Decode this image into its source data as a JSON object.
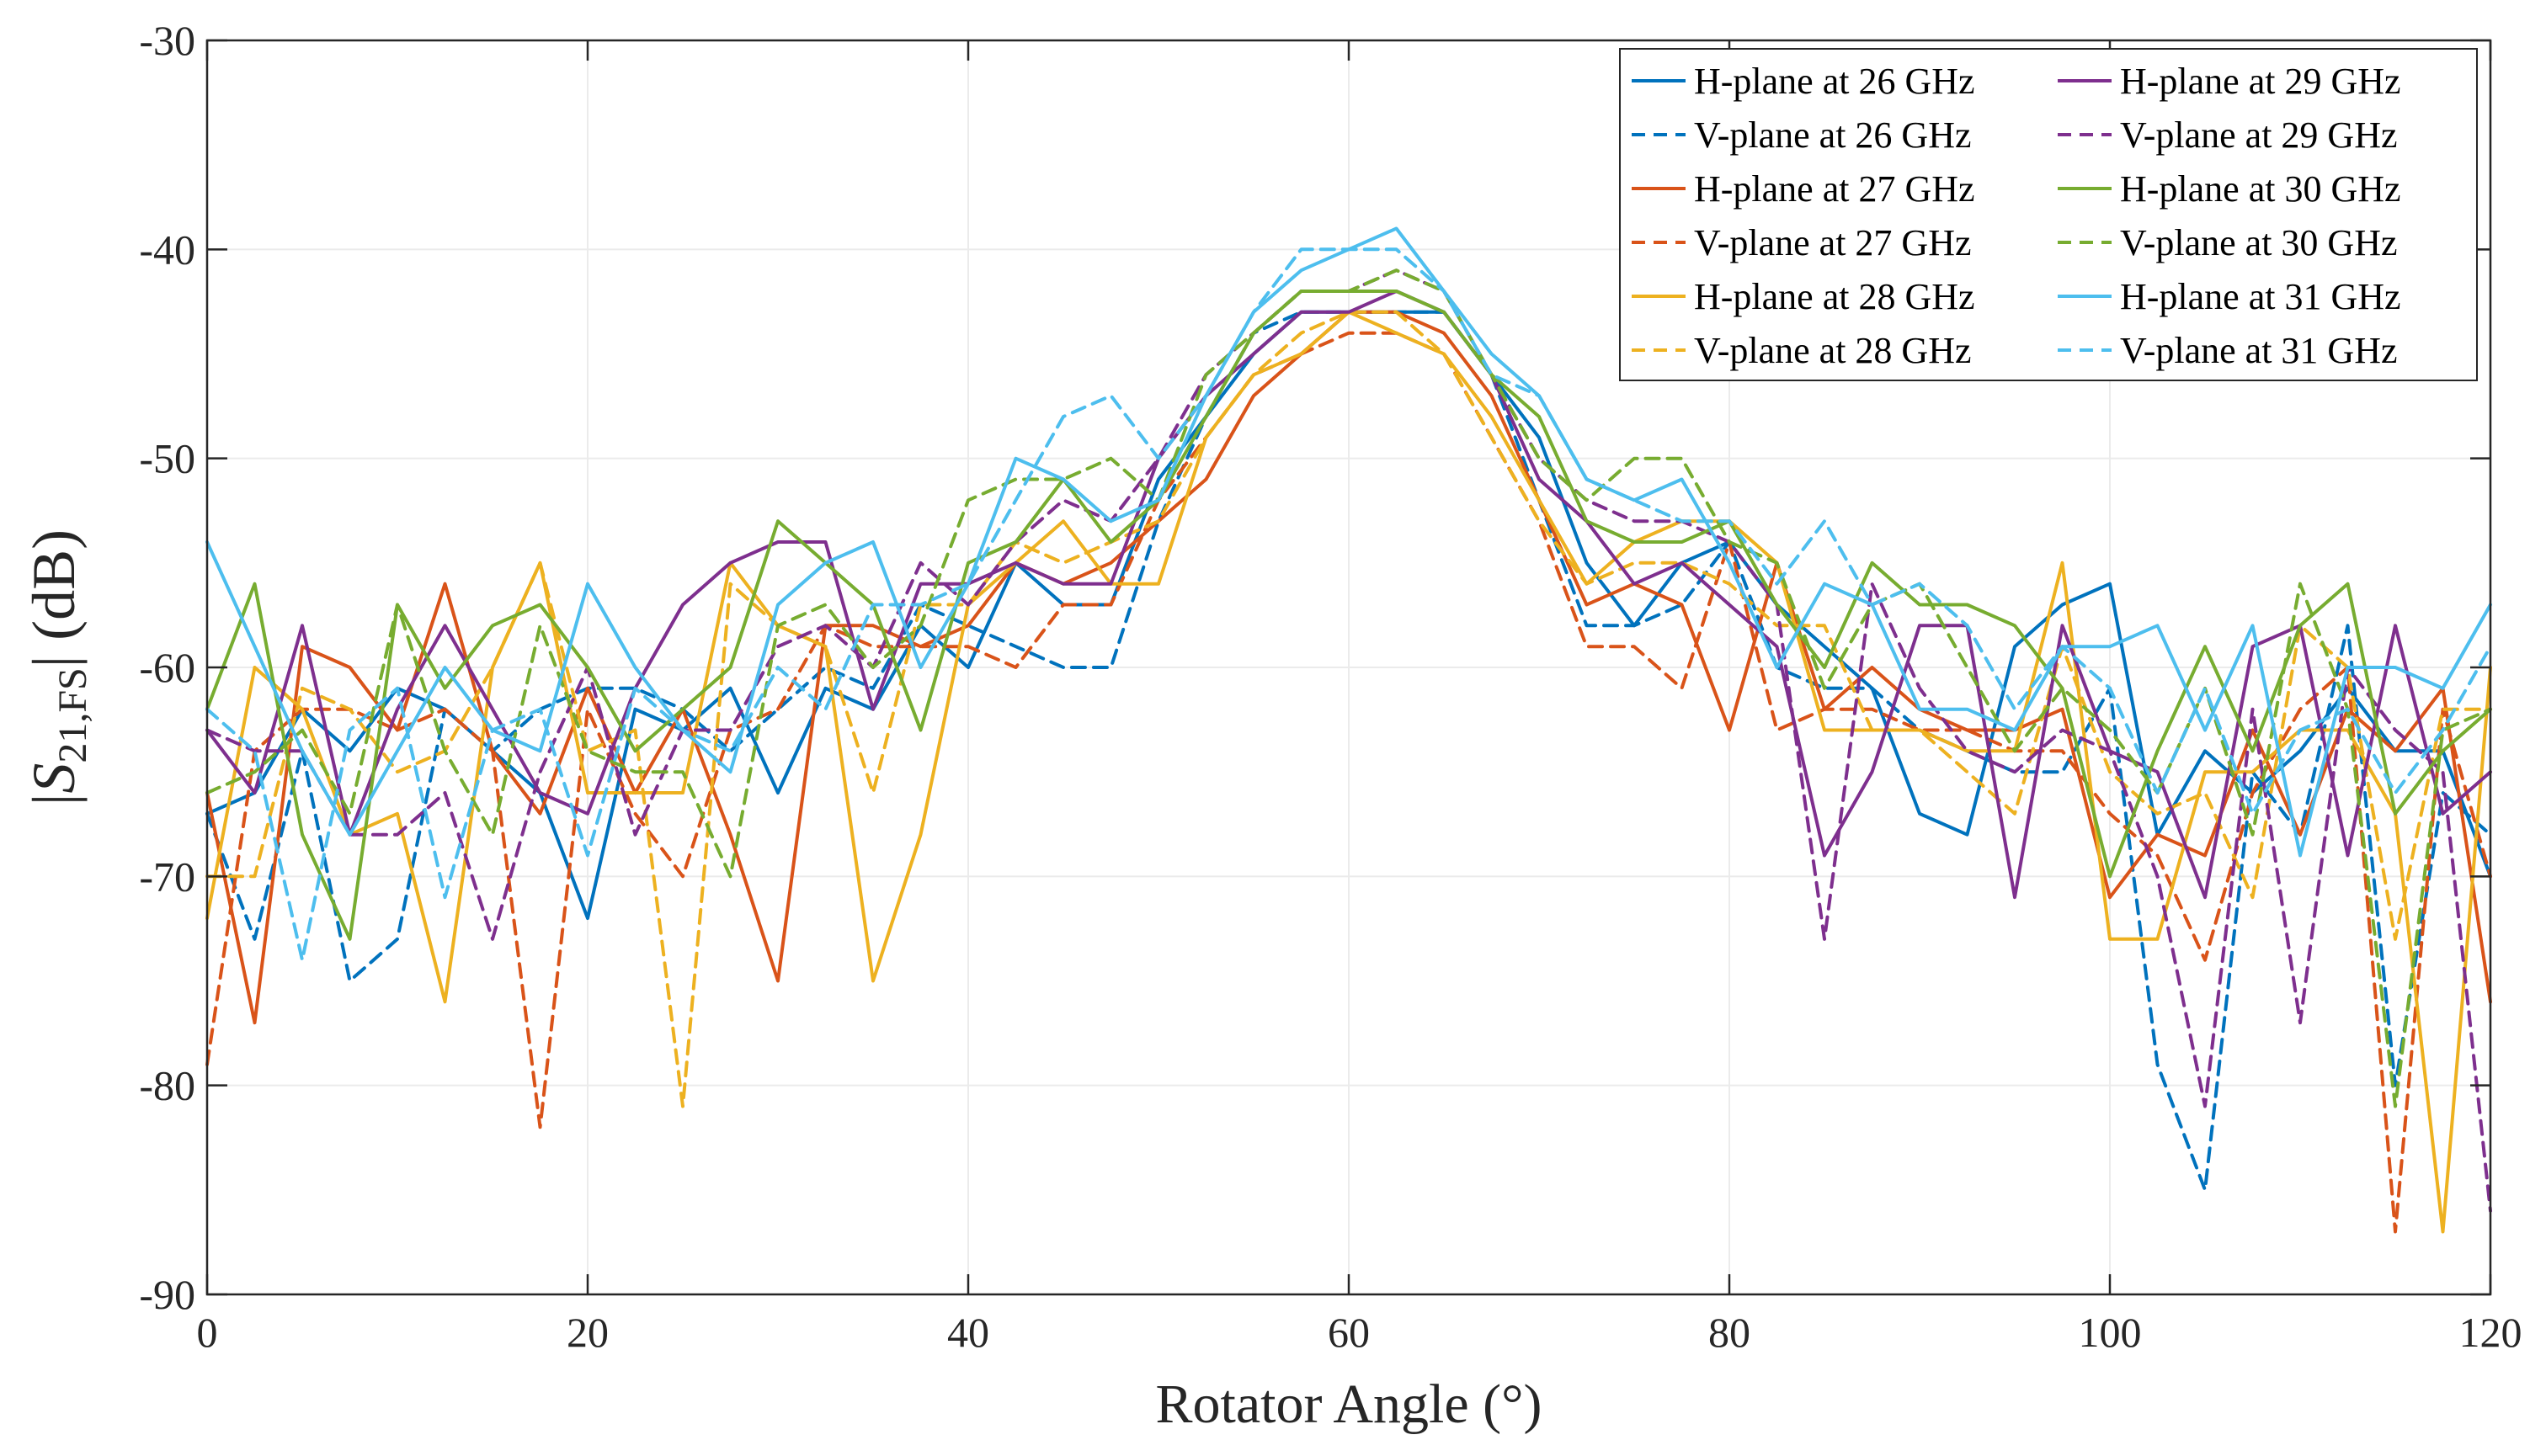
{
  "chart_data": {
    "type": "line",
    "title": "",
    "xlabel": "Rotator Angle (°)",
    "ylabel": "|S21,FS| (dB)",
    "ylabel_parts": {
      "pre": "|",
      "main": "S",
      "sub": "21,FS",
      "post": "| (dB)"
    },
    "xlim": [
      0,
      120
    ],
    "ylim": [
      -90,
      -30
    ],
    "xticks": [
      0,
      20,
      40,
      60,
      80,
      100,
      120
    ],
    "yticks": [
      -30,
      -40,
      -50,
      -60,
      -70,
      -80,
      -90
    ],
    "grid": true,
    "legend_position": "top-right",
    "x": [
      0,
      2.5,
      5,
      7.5,
      10,
      12.5,
      15,
      17.5,
      20,
      22.5,
      25,
      27.5,
      30,
      32.5,
      35,
      37.5,
      40,
      42.5,
      45,
      47.5,
      50,
      52.5,
      55,
      57.5,
      60,
      62.5,
      65,
      67.5,
      70,
      72.5,
      75,
      77.5,
      80,
      82.5,
      85,
      87.5,
      90,
      92.5,
      95,
      97.5,
      100,
      102.5,
      105,
      107.5,
      110,
      112.5,
      115,
      117.5,
      120
    ],
    "series": [
      {
        "name": "H-plane at 26 GHz",
        "color": "#0072BD",
        "dash": "solid",
        "values": [
          -67,
          -66,
          -62,
          -64,
          -61,
          -62,
          -64,
          -66,
          -72,
          -62,
          -63,
          -61,
          -66,
          -61,
          -62,
          -58,
          -60,
          -55,
          -57,
          -57,
          -51,
          -48,
          -45,
          -43,
          -43,
          -43,
          -43,
          -46,
          -49,
          -55,
          -58,
          -55,
          -54,
          -57,
          -59,
          -61,
          -67,
          -68,
          -59,
          -57,
          -56,
          -68,
          -64,
          -66,
          -64,
          -61,
          -64,
          -64,
          -70
        ]
      },
      {
        "name": "V-plane at 26 GHz",
        "color": "#0072BD",
        "dash": "dashed",
        "values": [
          -67,
          -73,
          -64,
          -75,
          -73,
          -62,
          -64,
          -62,
          -61,
          -61,
          -62,
          -64,
          -62,
          -60,
          -61,
          -57,
          -58,
          -59,
          -60,
          -60,
          -53,
          -48,
          -44,
          -43,
          -43,
          -43,
          -43,
          -46,
          -52,
          -58,
          -58,
          -57,
          -54,
          -60,
          -61,
          -61,
          -63,
          -64,
          -65,
          -65,
          -61,
          -79,
          -85,
          -65,
          -68,
          -58,
          -80,
          -66,
          -68
        ]
      },
      {
        "name": "H-plane at 27 GHz",
        "color": "#D95319",
        "dash": "solid",
        "values": [
          -66,
          -77,
          -59,
          -60,
          -63,
          -56,
          -64,
          -67,
          -61,
          -66,
          -62,
          -68,
          -75,
          -58,
          -58,
          -59,
          -58,
          -55,
          -56,
          -55,
          -53,
          -51,
          -47,
          -45,
          -43,
          -43,
          -44,
          -47,
          -52,
          -57,
          -56,
          -57,
          -63,
          -55,
          -62,
          -60,
          -62,
          -63,
          -63,
          -62,
          -71,
          -68,
          -69,
          -63,
          -68,
          -62,
          -64,
          -61,
          -76
        ]
      },
      {
        "name": "V-plane at 27 GHz",
        "color": "#D95319",
        "dash": "dashed",
        "values": [
          -79,
          -64,
          -62,
          -62,
          -63,
          -62,
          -64,
          -82,
          -62,
          -67,
          -70,
          -63,
          -62,
          -58,
          -59,
          -59,
          -59,
          -60,
          -57,
          -57,
          -52,
          -49,
          -46,
          -45,
          -44,
          -44,
          -45,
          -49,
          -53,
          -59,
          -59,
          -61,
          -54,
          -63,
          -62,
          -62,
          -63,
          -63,
          -64,
          -64,
          -67,
          -69,
          -74,
          -66,
          -62,
          -60,
          -87,
          -62,
          -70
        ]
      },
      {
        "name": "H-plane at 28 GHz",
        "color": "#EDB120",
        "dash": "solid",
        "values": [
          -72,
          -60,
          -62,
          -68,
          -67,
          -76,
          -60,
          -55,
          -66,
          -66,
          -66,
          -55,
          -58,
          -59,
          -75,
          -68,
          -57,
          -55,
          -53,
          -56,
          -56,
          -49,
          -46,
          -45,
          -43,
          -44,
          -45,
          -48,
          -52,
          -56,
          -54,
          -53,
          -53,
          -55,
          -63,
          -63,
          -63,
          -64,
          -64,
          -55,
          -73,
          -73,
          -65,
          -65,
          -63,
          -63,
          -67,
          -87,
          -60
        ]
      },
      {
        "name": "V-plane at 28 GHz",
        "color": "#EDB120",
        "dash": "dashed",
        "values": [
          -70,
          -70,
          -61,
          -62,
          -65,
          -64,
          -60,
          -55,
          -64,
          -63,
          -81,
          -56,
          -58,
          -59,
          -66,
          -57,
          -57,
          -54,
          -55,
          -54,
          -53,
          -49,
          -46,
          -44,
          -43,
          -43,
          -45,
          -49,
          -53,
          -56,
          -55,
          -55,
          -56,
          -58,
          -58,
          -63,
          -63,
          -65,
          -67,
          -59,
          -65,
          -67,
          -66,
          -71,
          -58,
          -60,
          -73,
          -62,
          -62
        ]
      },
      {
        "name": "H-plane at 29 GHz",
        "color": "#7E2F8E",
        "dash": "solid",
        "values": [
          -63,
          -66,
          -58,
          -68,
          -62,
          -58,
          -62,
          -66,
          -67,
          -61,
          -57,
          -55,
          -54,
          -54,
          -62,
          -56,
          -56,
          -55,
          -56,
          -56,
          -50,
          -47,
          -45,
          -43,
          -43,
          -42,
          -43,
          -46,
          -51,
          -53,
          -56,
          -55,
          -57,
          -59,
          -69,
          -65,
          -58,
          -58,
          -71,
          -58,
          -64,
          -65,
          -71,
          -59,
          -58,
          -69,
          -58,
          -67,
          -65
        ]
      },
      {
        "name": "V-plane at 29 GHz",
        "color": "#7E2F8E",
        "dash": "dashed",
        "values": [
          -63,
          -64,
          -64,
          -68,
          -68,
          -66,
          -73,
          -65,
          -60,
          -68,
          -63,
          -63,
          -59,
          -58,
          -60,
          -55,
          -57,
          -54,
          -52,
          -53,
          -50,
          -46,
          -44,
          -42,
          -42,
          -41,
          -42,
          -46,
          -50,
          -52,
          -53,
          -53,
          -54,
          -57,
          -73,
          -56,
          -61,
          -64,
          -65,
          -63,
          -64,
          -70,
          -81,
          -62,
          -77,
          -60,
          -63,
          -65,
          -86
        ]
      },
      {
        "name": "H-plane at 30 GHz",
        "color": "#77AC30",
        "dash": "solid",
        "values": [
          -62,
          -56,
          -68,
          -73,
          -57,
          -61,
          -58,
          -57,
          -60,
          -64,
          -62,
          -60,
          -53,
          -55,
          -57,
          -63,
          -55,
          -54,
          -51,
          -54,
          -52,
          -48,
          -44,
          -42,
          -42,
          -42,
          -43,
          -46,
          -48,
          -53,
          -54,
          -54,
          -53,
          -57,
          -60,
          -55,
          -57,
          -57,
          -58,
          -61,
          -70,
          -64,
          -59,
          -64,
          -58,
          -56,
          -67,
          -64,
          -62
        ]
      },
      {
        "name": "V-plane at 30 GHz",
        "color": "#77AC30",
        "dash": "dashed",
        "values": [
          -66,
          -65,
          -63,
          -67,
          -57,
          -64,
          -68,
          -58,
          -64,
          -65,
          -65,
          -70,
          -58,
          -57,
          -60,
          -58,
          -52,
          -51,
          -51,
          -50,
          -52,
          -46,
          -44,
          -42,
          -42,
          -41,
          -42,
          -46,
          -50,
          -52,
          -50,
          -50,
          -54,
          -55,
          -61,
          -57,
          -56,
          -60,
          -64,
          -61,
          -63,
          -66,
          -61,
          -68,
          -56,
          -62,
          -81,
          -63,
          -62
        ]
      },
      {
        "name": "H-plane at 31 GHz",
        "color": "#4DBEEE",
        "dash": "solid",
        "values": [
          -54,
          -59,
          -64,
          -68,
          -64,
          -60,
          -63,
          -64,
          -56,
          -60,
          -63,
          -65,
          -57,
          -55,
          -54,
          -60,
          -56,
          -50,
          -51,
          -53,
          -52,
          -47,
          -43,
          -41,
          -40,
          -39,
          -42,
          -45,
          -47,
          -51,
          -52,
          -51,
          -55,
          -60,
          -56,
          -57,
          -62,
          -62,
          -63,
          -59,
          -59,
          -58,
          -63,
          -58,
          -69,
          -60,
          -60,
          -61,
          -57
        ]
      },
      {
        "name": "V-plane at 31 GHz",
        "color": "#4DBEEE",
        "dash": "dashed",
        "values": [
          -62,
          -64,
          -74,
          -63,
          -61,
          -71,
          -63,
          -62,
          -69,
          -61,
          -63,
          -64,
          -60,
          -62,
          -57,
          -57,
          -56,
          -52,
          -48,
          -47,
          -50,
          -47,
          -43,
          -40,
          -40,
          -40,
          -42,
          -46,
          -47,
          -51,
          -52,
          -53,
          -53,
          -56,
          -53,
          -57,
          -56,
          -58,
          -62,
          -59,
          -61,
          -66,
          -61,
          -67,
          -63,
          -62,
          -66,
          -63,
          -59
        ]
      }
    ]
  }
}
